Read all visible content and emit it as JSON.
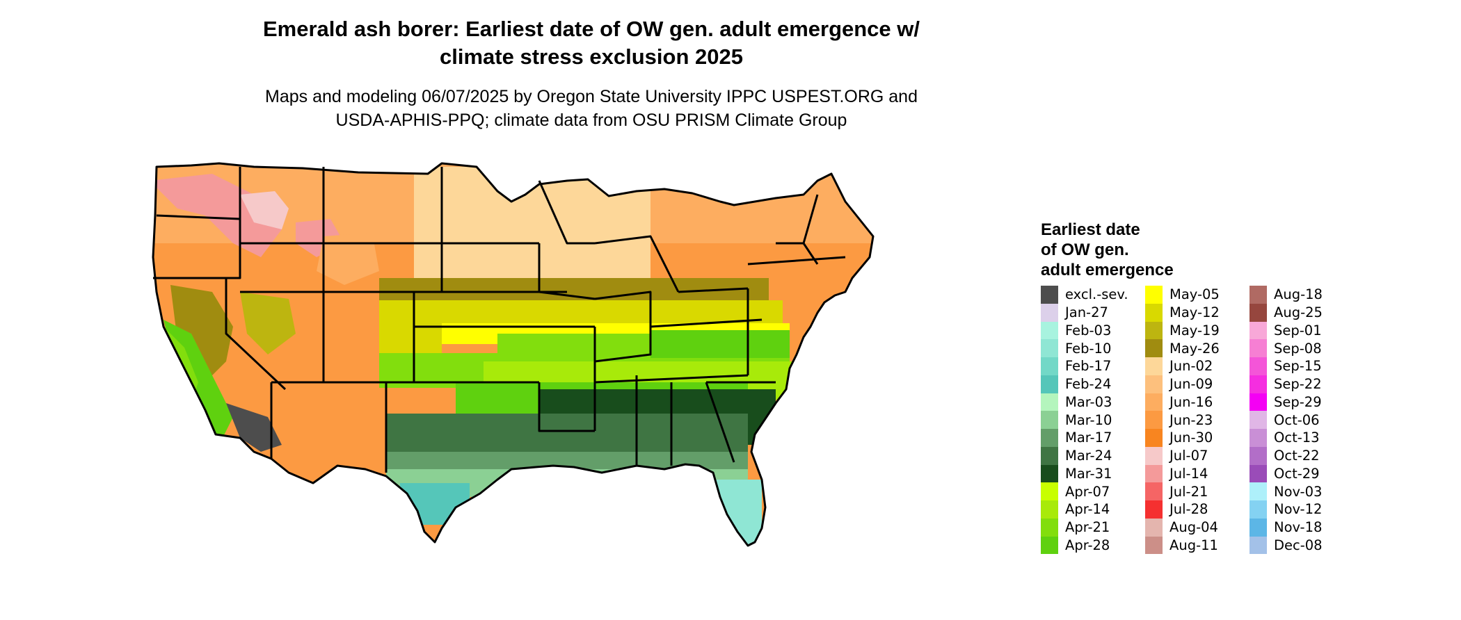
{
  "header": {
    "title_line1": "Emerald ash borer: Earliest date of OW gen. adult emergence w/",
    "title_line2": "climate stress exclusion 2025",
    "subtitle_line1": "Maps and modeling 06/07/2025 by Oregon State University IPPC USPEST.ORG and",
    "subtitle_line2": "USDA-APHIS-PPQ; climate data from OSU PRISM Climate Group"
  },
  "legend": {
    "title_line1": "Earliest date",
    "title_line2": "of OW gen.",
    "title_line3": "adult emergence",
    "columns": [
      [
        {
          "label": "excl.-sev.",
          "color": "#4d4d4d"
        },
        {
          "label": "Jan-27",
          "color": "#dcd0ea"
        },
        {
          "label": "Feb-03",
          "color": "#a8f3df"
        },
        {
          "label": "Feb-10",
          "color": "#8fe6d4"
        },
        {
          "label": "Feb-17",
          "color": "#72d8c7"
        },
        {
          "label": "Feb-24",
          "color": "#55c6b9"
        },
        {
          "label": "Mar-03",
          "color": "#b4f5bd"
        },
        {
          "label": "Mar-10",
          "color": "#8bd094"
        },
        {
          "label": "Mar-17",
          "color": "#639e69"
        },
        {
          "label": "Mar-24",
          "color": "#3f7543"
        },
        {
          "label": "Mar-31",
          "color": "#184d1c"
        },
        {
          "label": "Apr-07",
          "color": "#c8ff00"
        },
        {
          "label": "Apr-14",
          "color": "#a8ea0a"
        },
        {
          "label": "Apr-21",
          "color": "#82de0d"
        },
        {
          "label": "Apr-28",
          "color": "#5fd10f"
        }
      ],
      [
        {
          "label": "May-05",
          "color": "#ffff00"
        },
        {
          "label": "May-12",
          "color": "#d9d900"
        },
        {
          "label": "May-19",
          "color": "#bdb510"
        },
        {
          "label": "May-26",
          "color": "#a08c10"
        },
        {
          "label": "Jun-02",
          "color": "#fdd799"
        },
        {
          "label": "Jun-09",
          "color": "#fdc07d"
        },
        {
          "label": "Jun-16",
          "color": "#fdad60"
        },
        {
          "label": "Jun-23",
          "color": "#fc9a42"
        },
        {
          "label": "Jun-30",
          "color": "#f88520"
        },
        {
          "label": "Jul-07",
          "color": "#f6c9c9"
        },
        {
          "label": "Jul-14",
          "color": "#f49a9a"
        },
        {
          "label": "Jul-21",
          "color": "#f56565"
        },
        {
          "label": "Jul-28",
          "color": "#f53030"
        },
        {
          "label": "Aug-04",
          "color": "#e4b5ae"
        },
        {
          "label": "Aug-11",
          "color": "#cc8f88"
        }
      ],
      [
        {
          "label": "Aug-18",
          "color": "#b06a63"
        },
        {
          "label": "Aug-25",
          "color": "#96463e"
        },
        {
          "label": "Sep-01",
          "color": "#f8a8d8"
        },
        {
          "label": "Sep-08",
          "color": "#f67fd3"
        },
        {
          "label": "Sep-15",
          "color": "#f455d8"
        },
        {
          "label": "Sep-22",
          "color": "#f52ee0"
        },
        {
          "label": "Sep-29",
          "color": "#f400f4"
        },
        {
          "label": "Oct-06",
          "color": "#e0b6e6"
        },
        {
          "label": "Oct-13",
          "color": "#c98fd6"
        },
        {
          "label": "Oct-22",
          "color": "#b26ec8"
        },
        {
          "label": "Oct-29",
          "color": "#9a4cb8"
        },
        {
          "label": "Nov-03",
          "color": "#aef0fa"
        },
        {
          "label": "Nov-12",
          "color": "#84d2f2"
        },
        {
          "label": "Nov-18",
          "color": "#5cb6e6"
        },
        {
          "label": "Dec-08",
          "color": "#a3c1e8"
        }
      ]
    ]
  }
}
